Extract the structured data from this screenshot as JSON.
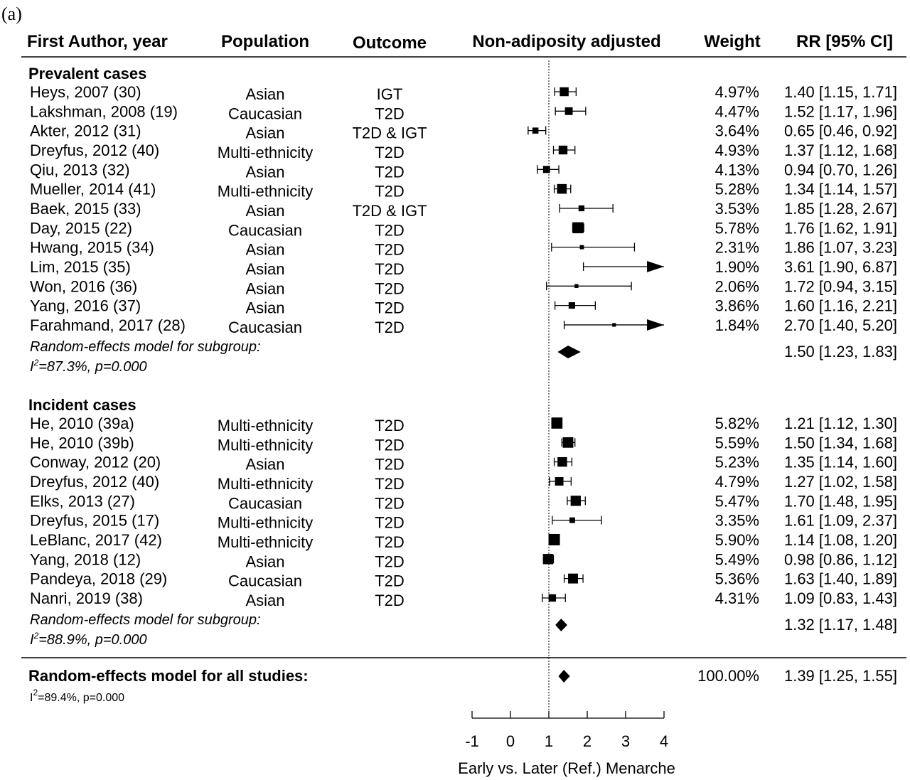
{
  "panel_label": "(a)",
  "headers": {
    "author": "First Author, year",
    "population": "Population",
    "outcome": "Outcome",
    "plot": "Non-adiposity adjusted",
    "weight": "Weight",
    "rr": "RR [95% CI]"
  },
  "chart_data": {
    "type": "forest",
    "measure": "RR",
    "reference_value": 1,
    "xlim": [
      -1,
      4
    ],
    "xticks": [
      -1,
      0,
      1,
      2,
      3,
      4
    ],
    "xlabel": "Early vs. Later (Ref.) Menarche",
    "title": "Non-adiposity adjusted",
    "groups": [
      {
        "label": "Prevalent cases",
        "studies": [
          {
            "author": "Heys, 2007 (30)",
            "population": "Asian",
            "outcome": "IGT",
            "weight": "4.97%",
            "rr_text": "1.40 [1.15, 1.71]",
            "rr": 1.4,
            "lo": 1.15,
            "hi": 1.71
          },
          {
            "author": "Lakshman, 2008 (19)",
            "population": "Caucasian",
            "outcome": "T2D",
            "weight": "4.47%",
            "rr_text": "1.52 [1.17, 1.96]",
            "rr": 1.52,
            "lo": 1.17,
            "hi": 1.96
          },
          {
            "author": "Akter, 2012 (31)",
            "population": "Asian",
            "outcome": "T2D & IGT",
            "weight": "3.64%",
            "rr_text": "0.65 [0.46, 0.92]",
            "rr": 0.65,
            "lo": 0.46,
            "hi": 0.92
          },
          {
            "author": "Dreyfus, 2012 (40)",
            "population": "Multi-ethnicity",
            "outcome": "T2D",
            "weight": "4.93%",
            "rr_text": "1.37 [1.12, 1.68]",
            "rr": 1.37,
            "lo": 1.12,
            "hi": 1.68
          },
          {
            "author": "Qiu, 2013 (32)",
            "population": "Asian",
            "outcome": "T2D",
            "weight": "4.13%",
            "rr_text": "0.94 [0.70, 1.26]",
            "rr": 0.94,
            "lo": 0.7,
            "hi": 1.26
          },
          {
            "author": "Mueller, 2014 (41)",
            "population": "Multi-ethnicity",
            "outcome": "T2D",
            "weight": "5.28%",
            "rr_text": "1.34 [1.14, 1.57]",
            "rr": 1.34,
            "lo": 1.14,
            "hi": 1.57
          },
          {
            "author": "Baek, 2015 (33)",
            "population": "Asian",
            "outcome": "T2D & IGT",
            "weight": "3.53%",
            "rr_text": "1.85 [1.28, 2.67]",
            "rr": 1.85,
            "lo": 1.28,
            "hi": 2.67
          },
          {
            "author": "Day, 2015 (22)",
            "population": "Caucasian",
            "outcome": "T2D",
            "weight": "5.78%",
            "rr_text": "1.76 [1.62, 1.91]",
            "rr": 1.76,
            "lo": 1.62,
            "hi": 1.91
          },
          {
            "author": "Hwang, 2015 (34)",
            "population": "Asian",
            "outcome": "T2D",
            "weight": "2.31%",
            "rr_text": "1.86 [1.07, 3.23]",
            "rr": 1.86,
            "lo": 1.07,
            "hi": 3.23
          },
          {
            "author": "Lim, 2015 (35)",
            "population": "Asian",
            "outcome": "T2D",
            "weight": "1.90%",
            "rr_text": "3.61 [1.90, 6.87]",
            "rr": 3.61,
            "lo": 1.9,
            "hi": 6.87
          },
          {
            "author": "Won, 2016 (36)",
            "population": "Asian",
            "outcome": "T2D",
            "weight": "2.06%",
            "rr_text": "1.72 [0.94, 3.15]",
            "rr": 1.72,
            "lo": 0.94,
            "hi": 3.15
          },
          {
            "author": "Yang, 2016 (37)",
            "population": "Asian",
            "outcome": "T2D",
            "weight": "3.86%",
            "rr_text": "1.60 [1.16, 2.21]",
            "rr": 1.6,
            "lo": 1.16,
            "hi": 2.21
          },
          {
            "author": "Farahmand, 2017 (28)",
            "population": "Caucasian",
            "outcome": "T2D",
            "weight": "1.84%",
            "rr_text": "2.70 [1.40, 5.20]",
            "rr": 2.7,
            "lo": 1.4,
            "hi": 5.2
          }
        ],
        "summary": {
          "label": "Random-effects model for subgroup:",
          "het_i2": "=87.3%, p=0.000",
          "rr_text": "1.50 [1.23, 1.83]",
          "rr": 1.5,
          "lo": 1.23,
          "hi": 1.83
        }
      },
      {
        "label": "Incident cases",
        "studies": [
          {
            "author": "He, 2010 (39a)",
            "population": "Multi-ethnicity",
            "outcome": "T2D",
            "weight": "5.82%",
            "rr_text": "1.21 [1.12, 1.30]",
            "rr": 1.21,
            "lo": 1.12,
            "hi": 1.3
          },
          {
            "author": "He, 2010 (39b)",
            "population": "Multi-ethnicity",
            "outcome": "T2D",
            "weight": "5.59%",
            "rr_text": "1.50 [1.34, 1.68]",
            "rr": 1.5,
            "lo": 1.34,
            "hi": 1.68
          },
          {
            "author": "Conway, 2012 (20)",
            "population": "Asian",
            "outcome": "T2D",
            "weight": "5.23%",
            "rr_text": "1.35 [1.14, 1.60]",
            "rr": 1.35,
            "lo": 1.14,
            "hi": 1.6
          },
          {
            "author": "Dreyfus, 2012 (40)",
            "population": "Multi-ethnicity",
            "outcome": "T2D",
            "weight": "4.79%",
            "rr_text": "1.27 [1.02, 1.58]",
            "rr": 1.27,
            "lo": 1.02,
            "hi": 1.58
          },
          {
            "author": "Elks, 2013 (27)",
            "population": "Caucasian",
            "outcome": "T2D",
            "weight": "5.47%",
            "rr_text": "1.70 [1.48, 1.95]",
            "rr": 1.7,
            "lo": 1.48,
            "hi": 1.95
          },
          {
            "author": "Dreyfus, 2015 (17)",
            "population": "Multi-ethnicity",
            "outcome": "T2D",
            "weight": "3.35%",
            "rr_text": "1.61 [1.09, 2.37]",
            "rr": 1.61,
            "lo": 1.09,
            "hi": 2.37
          },
          {
            "author": "LeBlanc, 2017 (42)",
            "population": "Multi-ethnicity",
            "outcome": "T2D",
            "weight": "5.90%",
            "rr_text": "1.14 [1.08, 1.20]",
            "rr": 1.14,
            "lo": 1.08,
            "hi": 1.2
          },
          {
            "author": "Yang, 2018 (12)",
            "population": "Asian",
            "outcome": "T2D",
            "weight": "5.49%",
            "rr_text": "0.98 [0.86, 1.12]",
            "rr": 0.98,
            "lo": 0.86,
            "hi": 1.12
          },
          {
            "author": "Pandeya, 2018 (29)",
            "population": "Caucasian",
            "outcome": "T2D",
            "weight": "5.36%",
            "rr_text": "1.63 [1.40, 1.89]",
            "rr": 1.63,
            "lo": 1.4,
            "hi": 1.89
          },
          {
            "author": "Nanri, 2019 (38)",
            "population": "Asian",
            "outcome": "T2D",
            "weight": "4.31%",
            "rr_text": "1.09 [0.83, 1.43]",
            "rr": 1.09,
            "lo": 0.83,
            "hi": 1.43
          }
        ],
        "summary": {
          "label": "Random-effects model for subgroup:",
          "het_i2": "=88.9%, p=0.000",
          "rr_text": "1.32 [1.17, 1.48]",
          "rr": 1.32,
          "lo": 1.17,
          "hi": 1.48
        }
      }
    ],
    "overall": {
      "label": "Random-effects model for all studies:",
      "het_i2": "=89.4%, p=0.000",
      "weight": "100.00%",
      "rr_text": "1.39 [1.25, 1.55]",
      "rr": 1.39,
      "lo": 1.25,
      "hi": 1.55
    }
  }
}
